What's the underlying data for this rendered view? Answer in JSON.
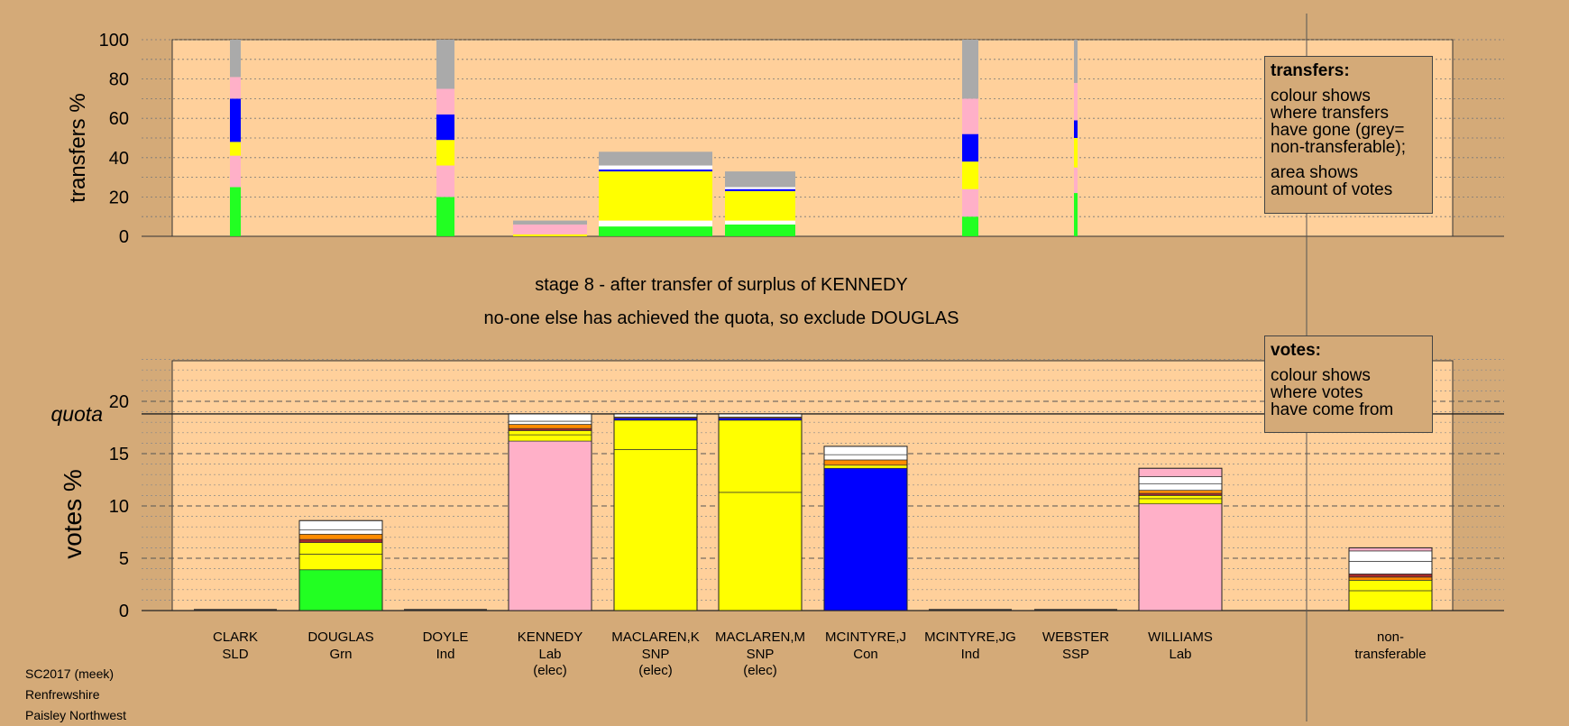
{
  "stage": {
    "line1": "stage 8 - after transfer of surplus of KENNEDY",
    "line2": "no-one else has achieved the quota, so exclude DOUGLAS"
  },
  "legend_transfers": {
    "title": "transfers:",
    "lines1": [
      "colour shows",
      "where transfers",
      "have gone (grey=",
      "non-transferable);"
    ],
    "lines2": [
      "area shows",
      "amount of votes"
    ]
  },
  "legend_votes": {
    "title": "votes:",
    "lines1": [
      "colour shows",
      "where votes",
      "have come from"
    ]
  },
  "footer": {
    "lines": [
      "SC2017 (meek)",
      "Renfrewshire",
      "Paisley Northwest"
    ]
  },
  "colors": {
    "plot_bg": "#ffd09b",
    "page_bg": "#d4aa78",
    "Grn": "#22ff22",
    "Lab": "#ffb0c8",
    "SNP": "#ffff00",
    "Con": "#0000ff",
    "nontransferable": "#aaaaaa",
    "orange": "#ff8c00",
    "darkred": "#a52a2a",
    "white": "#ffffff"
  },
  "chart_data": [
    {
      "type": "bar",
      "stacked": true,
      "ylabel": "transfers %",
      "ylim": [
        0,
        100
      ],
      "yticks": [
        0,
        20,
        40,
        60,
        80,
        100
      ],
      "grid": true,
      "columns": [
        {
          "segments": [
            {
              "v": 25,
              "c": "Grn"
            },
            {
              "v": 16,
              "c": "Lab"
            },
            {
              "v": 7,
              "c": "SNP"
            },
            {
              "v": 22,
              "c": "Con"
            },
            {
              "v": 11,
              "c": "Lab"
            },
            {
              "v": 19,
              "c": "nontransferable"
            }
          ]
        },
        {
          "segments": []
        },
        {
          "segments": [
            {
              "v": 20,
              "c": "Grn"
            },
            {
              "v": 16,
              "c": "Lab"
            },
            {
              "v": 13,
              "c": "SNP"
            },
            {
              "v": 13,
              "c": "Con"
            },
            {
              "v": 13,
              "c": "Lab"
            },
            {
              "v": 25,
              "c": "nontransferable"
            }
          ]
        },
        {
          "segments": [
            {
              "v": 1,
              "c": "SNP"
            },
            {
              "v": 5,
              "c": "Lab"
            },
            {
              "v": 2,
              "c": "nontransferable"
            }
          ]
        },
        {
          "segments": [
            {
              "v": 5,
              "c": "Grn"
            },
            {
              "v": 3,
              "c": "white"
            },
            {
              "v": 25,
              "c": "SNP"
            },
            {
              "v": 1,
              "c": "Con"
            },
            {
              "v": 2,
              "c": "white"
            },
            {
              "v": 7,
              "c": "nontransferable"
            }
          ]
        },
        {
          "segments": [
            {
              "v": 6,
              "c": "Grn"
            },
            {
              "v": 2,
              "c": "white"
            },
            {
              "v": 15,
              "c": "SNP"
            },
            {
              "v": 1,
              "c": "Con"
            },
            {
              "v": 1,
              "c": "white"
            },
            {
              "v": 8,
              "c": "nontransferable"
            }
          ]
        },
        {
          "segments": []
        },
        {
          "segments": [
            {
              "v": 10,
              "c": "Grn"
            },
            {
              "v": 14,
              "c": "Lab"
            },
            {
              "v": 14,
              "c": "SNP"
            },
            {
              "v": 14,
              "c": "Con"
            },
            {
              "v": 18,
              "c": "Lab"
            },
            {
              "v": 30,
              "c": "nontransferable"
            }
          ]
        },
        {
          "segments": [
            {
              "v": 22,
              "c": "Grn"
            },
            {
              "v": 13,
              "c": "Lab"
            },
            {
              "v": 15,
              "c": "SNP"
            },
            {
              "v": 9,
              "c": "Con"
            },
            {
              "v": 19,
              "c": "Lab"
            },
            {
              "v": 22,
              "c": "nontransferable"
            }
          ]
        },
        {
          "segments": []
        },
        {
          "segments": []
        }
      ]
    },
    {
      "type": "bar",
      "stacked": true,
      "ylabel": "votes %",
      "ylim": [
        0,
        24
      ],
      "yticks": [
        0,
        5,
        10,
        15,
        20
      ],
      "quota": 18.8,
      "quota_label": "quota",
      "grid": true,
      "categories": [
        {
          "name": "CLARK",
          "party": "SLD",
          "status": ""
        },
        {
          "name": "DOUGLAS",
          "party": "Grn",
          "status": ""
        },
        {
          "name": "DOYLE",
          "party": "Ind",
          "status": ""
        },
        {
          "name": "KENNEDY",
          "party": "Lab",
          "status": "(elec)"
        },
        {
          "name": "MACLAREN,K",
          "party": "SNP",
          "status": "(elec)"
        },
        {
          "name": "MACLAREN,M",
          "party": "SNP",
          "status": "(elec)"
        },
        {
          "name": "MCINTYRE,J",
          "party": "Con",
          "status": ""
        },
        {
          "name": "MCINTYRE,JG",
          "party": "Ind",
          "status": ""
        },
        {
          "name": "WEBSTER",
          "party": "SSP",
          "status": ""
        },
        {
          "name": "WILLIAMS",
          "party": "Lab",
          "status": ""
        },
        {
          "name": "non-",
          "party": "transferable",
          "status": ""
        }
      ],
      "columns": [
        {
          "total": 0.1,
          "segments": []
        },
        {
          "total": 8.6,
          "segments": [
            {
              "v": 3.9,
              "c": "Grn"
            },
            {
              "v": 1.5,
              "c": "SNP"
            },
            {
              "v": 1.1,
              "c": "SNP"
            },
            {
              "v": 0.3,
              "c": "darkred"
            },
            {
              "v": 0.5,
              "c": "orange"
            },
            {
              "v": 0.4,
              "c": "white"
            },
            {
              "v": 0.9,
              "c": "white"
            }
          ]
        },
        {
          "total": 0.1,
          "segments": []
        },
        {
          "total": 18.8,
          "segments": [
            {
              "v": 16.2,
              "c": "Lab"
            },
            {
              "v": 0.6,
              "c": "SNP"
            },
            {
              "v": 0.4,
              "c": "SNP"
            },
            {
              "v": 0.2,
              "c": "darkred"
            },
            {
              "v": 0.4,
              "c": "orange"
            },
            {
              "v": 0.3,
              "c": "white"
            },
            {
              "v": 0.7,
              "c": "white"
            }
          ]
        },
        {
          "total": 18.8,
          "segments": [
            {
              "v": 15.4,
              "c": "SNP"
            },
            {
              "v": 2.8,
              "c": "SNP"
            },
            {
              "v": 0.2,
              "c": "Con"
            },
            {
              "v": 0.1,
              "c": "orange"
            },
            {
              "v": 0.3,
              "c": "white"
            }
          ]
        },
        {
          "total": 18.8,
          "segments": [
            {
              "v": 11.3,
              "c": "SNP"
            },
            {
              "v": 6.9,
              "c": "SNP"
            },
            {
              "v": 0.2,
              "c": "Con"
            },
            {
              "v": 0.1,
              "c": "orange"
            },
            {
              "v": 0.3,
              "c": "white"
            }
          ]
        },
        {
          "total": 15.7,
          "segments": [
            {
              "v": 13.6,
              "c": "Con"
            },
            {
              "v": 0.3,
              "c": "SNP"
            },
            {
              "v": 0.5,
              "c": "orange"
            },
            {
              "v": 0.5,
              "c": "white"
            },
            {
              "v": 0.8,
              "c": "white"
            }
          ]
        },
        {
          "total": 0.1,
          "segments": []
        },
        {
          "total": 0.1,
          "segments": []
        },
        {
          "total": 13.6,
          "segments": [
            {
              "v": 10.2,
              "c": "Lab"
            },
            {
              "v": 0.5,
              "c": "SNP"
            },
            {
              "v": 0.3,
              "c": "SNP"
            },
            {
              "v": 0.2,
              "c": "darkred"
            },
            {
              "v": 0.3,
              "c": "orange"
            },
            {
              "v": 0.6,
              "c": "white"
            },
            {
              "v": 0.7,
              "c": "white"
            },
            {
              "v": 0.8,
              "c": "Lab"
            }
          ]
        },
        {
          "total": 6.0,
          "segments": [
            {
              "v": 1.9,
              "c": "SNP"
            },
            {
              "v": 1.0,
              "c": "SNP"
            },
            {
              "v": 0.3,
              "c": "orange"
            },
            {
              "v": 0.3,
              "c": "darkred"
            },
            {
              "v": 1.2,
              "c": "white"
            },
            {
              "v": 1.0,
              "c": "white"
            },
            {
              "v": 0.3,
              "c": "Lab"
            }
          ]
        }
      ]
    }
  ]
}
